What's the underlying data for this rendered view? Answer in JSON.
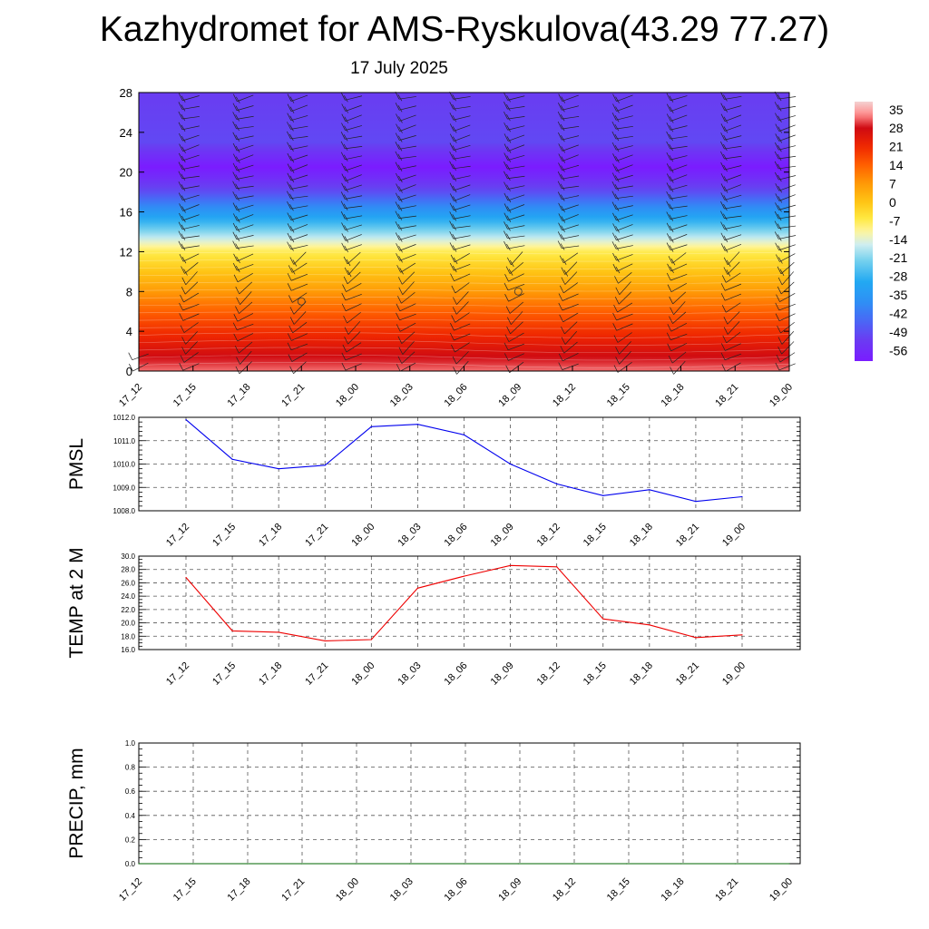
{
  "header": {
    "title": "Kazhydromet for AMS-Ryskulova(43.29 77.27)",
    "date": "17 July 2025"
  },
  "chart_data": [
    {
      "type": "heatmap",
      "id": "cross-section",
      "title": "",
      "x_tick_labels": [
        "17_12",
        "17_15",
        "17_18",
        "17_21",
        "18_00",
        "18_03",
        "18_06",
        "18_09",
        "18_12",
        "18_15",
        "18_18",
        "18_21",
        "19_00"
      ],
      "y_ticks": [
        0,
        4,
        8,
        12,
        16,
        20,
        24,
        28
      ],
      "ylim": [
        0,
        28
      ],
      "colorbar_labels": [
        "35",
        "28",
        "21",
        "14",
        "7",
        "0",
        "-7",
        "-14",
        "-21",
        "-28",
        "-35",
        "-42",
        "-49",
        "-56"
      ],
      "colorbar_range": [
        -60,
        38
      ],
      "temperature_profile": {
        "heights": [
          0,
          2,
          4,
          6,
          8,
          10,
          12,
          13,
          14,
          16,
          18,
          19.5,
          20.5,
          21.5,
          23,
          28
        ],
        "values": [
          32,
          26,
          20,
          14,
          7,
          0,
          -7,
          -14,
          -21,
          -35,
          -49,
          -56,
          -60,
          -56,
          -50,
          -52
        ]
      },
      "wind_barbs": "present",
      "colors": {
        "warm": "#c8101a",
        "cold": "#8a2df0",
        "mid": "#fff23a"
      }
    },
    {
      "type": "line",
      "id": "pmsl",
      "ylabel": "PMSL",
      "categories": [
        "17_12",
        "17_15",
        "17_18",
        "17_21",
        "18_00",
        "18_03",
        "18_06",
        "18_09",
        "18_12",
        "18_15",
        "18_18",
        "18_21",
        "19_00"
      ],
      "values": [
        1011.9,
        1010.2,
        1009.8,
        1009.95,
        1011.6,
        1011.7,
        1011.25,
        1010.0,
        1009.15,
        1008.65,
        1008.9,
        1008.4,
        1008.6
      ],
      "ylim": [
        1008.0,
        1012.0
      ],
      "y_tick_labels": [
        "1008.0",
        "1009.0",
        "1010.0",
        "1011.0",
        "1012.0"
      ],
      "color": "#0000ee"
    },
    {
      "type": "line",
      "id": "temp2m",
      "ylabel": "TEMP at 2 M",
      "categories": [
        "17_12",
        "17_15",
        "17_18",
        "17_21",
        "18_00",
        "18_03",
        "18_06",
        "18_09",
        "18_12",
        "18_15",
        "18_18",
        "18_21",
        "19_00"
      ],
      "values": [
        26.8,
        18.8,
        18.6,
        17.3,
        17.5,
        25.2,
        27.0,
        28.6,
        28.4,
        20.6,
        19.7,
        17.8,
        18.2
      ],
      "ylim": [
        16.0,
        30.0
      ],
      "y_tick_labels": [
        "16.0",
        "18.0",
        "20.0",
        "22.0",
        "24.0",
        "26.0",
        "28.0",
        "30.0"
      ],
      "color": "#ee0000"
    },
    {
      "type": "line",
      "id": "precip",
      "ylabel": "PRECIP, mm",
      "x_tick_labels": [
        "17_12",
        "17_15",
        "17_18",
        "17_21",
        "18_00",
        "18_03",
        "18_06",
        "18_09",
        "18_12",
        "18_15",
        "18_18",
        "18_21",
        "19_00"
      ],
      "values": [
        0,
        0,
        0,
        0,
        0,
        0,
        0,
        0,
        0,
        0,
        0,
        0,
        0
      ],
      "ylim": [
        0.0,
        1.0
      ],
      "y_tick_labels": [
        "0.0",
        "0.2",
        "0.4",
        "0.6",
        "0.8",
        "1.0"
      ],
      "color": "#006400"
    }
  ]
}
